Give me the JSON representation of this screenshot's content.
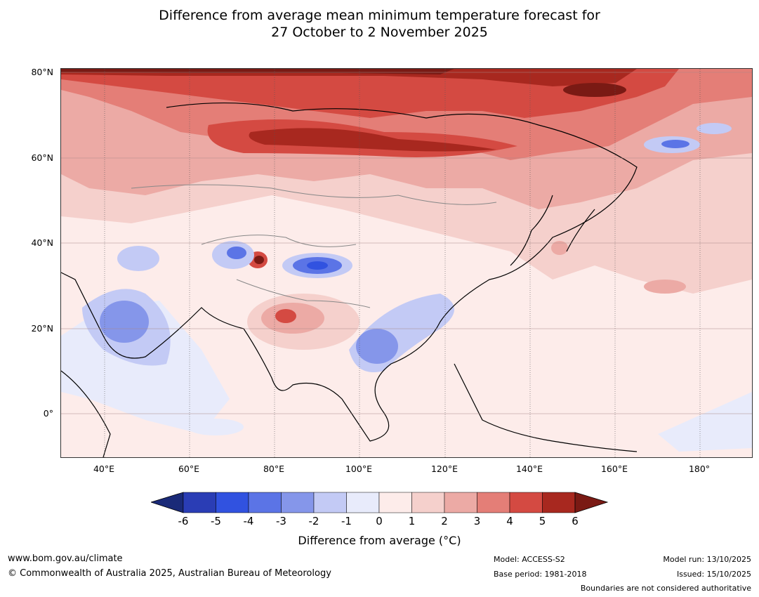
{
  "title_line1": "Difference from average mean minimum temperature forecast for",
  "title_line2": "27 October to 2 November 2025",
  "lat_labels": [
    "80°N",
    "60°N",
    "40°N",
    "20°N",
    "0°"
  ],
  "lon_labels": [
    "40°E",
    "60°E",
    "80°E",
    "100°E",
    "120°E",
    "140°E",
    "160°E",
    "180°"
  ],
  "colorbar": {
    "ticks": [
      "-6",
      "-5",
      "-4",
      "-3",
      "-2",
      "-1",
      "0",
      "1",
      "2",
      "3",
      "4",
      "5",
      "6"
    ],
    "colors": [
      "#1a2a78",
      "#2a3db5",
      "#3152e0",
      "#5b74e6",
      "#8596ea",
      "#c3caf5",
      "#e8ebfb",
      "#fdecea",
      "#f5d0cc",
      "#ecaaa5",
      "#e47e77",
      "#d44a42",
      "#a8281f",
      "#7a1a14"
    ],
    "label": "Difference from average (°C)"
  },
  "footer": {
    "website": "www.bom.gov.au/climate",
    "copyright": "© Commonwealth of Australia 2025, Australian Bureau of Meteorology",
    "model": "Model: ACCESS-S2",
    "base_period": "Base period: 1981-2018",
    "model_run": "Model run: 13/10/2025",
    "issued": "Issued: 15/10/2025",
    "boundaries": "Boundaries are not considered authoritative"
  }
}
